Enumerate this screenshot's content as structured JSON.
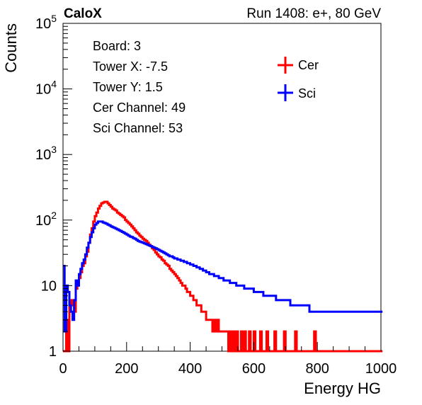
{
  "chart_data": {
    "type": "histogram-step",
    "title_left": "CaloX",
    "title_right": "Run 1408: e+, 80 GeV",
    "xlabel": "Energy HG",
    "ylabel": "Counts",
    "xlim": [
      0,
      1000
    ],
    "ylim": [
      1,
      100000
    ],
    "yscale": "log",
    "x_ticks": [
      "0",
      "200",
      "400",
      "600",
      "800",
      "1000"
    ],
    "y_ticks": [
      {
        "base": "1",
        "exp": ""
      },
      {
        "base": "10",
        "exp": ""
      },
      {
        "base": "10",
        "exp": "2"
      },
      {
        "base": "10",
        "exp": "3"
      },
      {
        "base": "10",
        "exp": "4"
      },
      {
        "base": "10",
        "exp": "5"
      }
    ],
    "y_tick_values": [
      1,
      10,
      100,
      1000,
      10000,
      100000
    ],
    "info_lines": [
      "Board: 3",
      "Tower X: -7.5",
      "Tower Y: 1.5",
      "Cer Channel: 49",
      "Sci Channel: 53"
    ],
    "legend_placement": "top-right",
    "bin_width": 5,
    "series": [
      {
        "name": "Cer",
        "color": "#ff0000",
        "values": [
          1,
          1,
          3,
          1,
          6,
          5,
          6,
          4,
          9,
          11,
          13,
          16,
          20,
          22,
          28,
          33,
          45,
          60,
          75,
          95,
          115,
          130,
          150,
          165,
          180,
          185,
          190,
          190,
          180,
          170,
          160,
          150,
          145,
          140,
          130,
          125,
          120,
          115,
          110,
          100,
          95,
          90,
          85,
          80,
          75,
          70,
          65,
          62,
          58,
          55,
          52,
          50,
          48,
          45,
          42,
          40,
          37,
          35,
          32,
          30,
          28,
          27,
          25,
          24,
          22,
          21,
          20,
          18,
          17,
          16,
          15,
          14,
          13,
          12,
          11,
          10,
          10,
          9,
          8,
          8,
          7,
          7,
          6,
          6,
          5,
          5,
          5,
          4,
          4,
          4,
          3,
          3,
          3,
          3,
          2,
          3,
          2,
          3,
          2,
          2,
          2,
          2,
          2,
          2,
          1,
          2,
          1,
          2,
          1,
          2,
          1,
          1,
          2,
          1,
          2,
          1,
          1,
          2,
          1,
          1,
          2,
          1,
          1,
          1,
          2,
          1,
          1,
          1,
          2,
          1,
          1,
          1,
          1,
          2,
          1,
          1,
          1,
          1,
          1,
          2,
          1,
          1,
          1,
          1,
          1,
          1,
          2,
          1,
          1,
          1,
          1,
          1,
          1,
          1,
          1,
          1,
          1,
          1,
          2,
          1,
          1,
          1,
          1,
          1,
          1,
          1,
          1,
          1,
          1,
          1,
          1,
          1,
          1,
          1,
          1,
          1,
          1,
          1,
          1,
          1,
          1,
          1,
          1,
          1,
          1,
          1,
          1,
          1,
          1,
          1,
          1,
          1,
          1,
          1,
          1,
          1,
          1,
          1,
          1,
          1,
          1
        ]
      },
      {
        "name": "Sci",
        "color": "#0000ff",
        "values": [
          20,
          2,
          10,
          8,
          5,
          4,
          3,
          6,
          12,
          10,
          15,
          18,
          22,
          25,
          30,
          38,
          45,
          55,
          65,
          75,
          85,
          90,
          95,
          95,
          95,
          92,
          90,
          88,
          85,
          83,
          80,
          78,
          76,
          74,
          72,
          70,
          68,
          66,
          64,
          62,
          60,
          58,
          56,
          55,
          53,
          52,
          50,
          48,
          47,
          46,
          45,
          44,
          43,
          42,
          41,
          40,
          39,
          38,
          37,
          36,
          35,
          34,
          33,
          32,
          31,
          30,
          29,
          28,
          28,
          27,
          26,
          26,
          25,
          25,
          24,
          24,
          23,
          23,
          22,
          22,
          21,
          21,
          20,
          20,
          19,
          19,
          18,
          18,
          17,
          17,
          16,
          16,
          15,
          15,
          15,
          14,
          14,
          14,
          13,
          13,
          13,
          12,
          12,
          12,
          12,
          11,
          11,
          11,
          11,
          10,
          10,
          10,
          10,
          10,
          9,
          9,
          9,
          9,
          9,
          9,
          8,
          8,
          8,
          8,
          8,
          8,
          7,
          7,
          7,
          7,
          7,
          7,
          7,
          7,
          6,
          6,
          6,
          6,
          6,
          6,
          6,
          6,
          6,
          5,
          5,
          5,
          5,
          5,
          5,
          5,
          5,
          5,
          5,
          5,
          5,
          4,
          4,
          4,
          4,
          4,
          4,
          4,
          4,
          4,
          4,
          4,
          4,
          4,
          4,
          4,
          4,
          4,
          4,
          4,
          4,
          4,
          4,
          4,
          4,
          4,
          4,
          4,
          4,
          4,
          4,
          4,
          4,
          4,
          4,
          4,
          4,
          4,
          4,
          4,
          4,
          4,
          4,
          4,
          4,
          4,
          4
        ]
      }
    ]
  }
}
